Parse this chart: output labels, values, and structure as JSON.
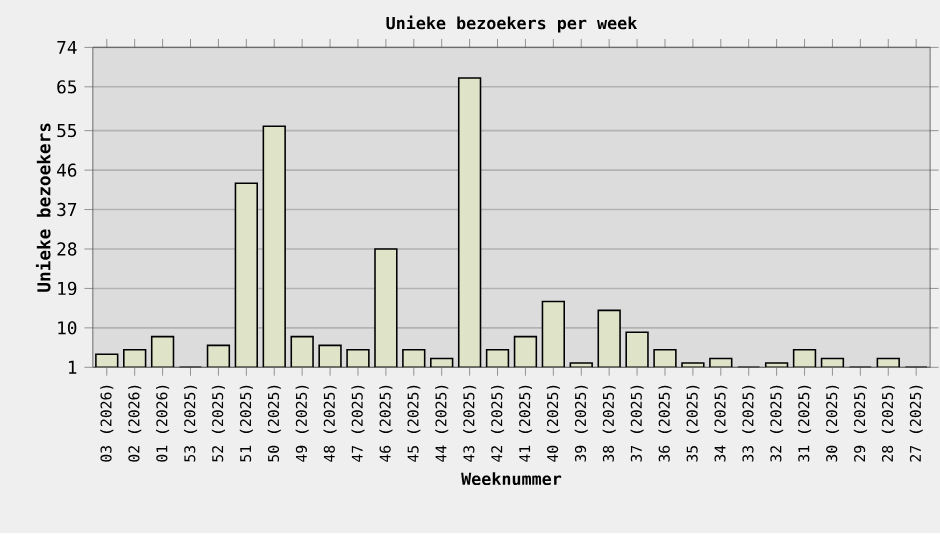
{
  "chart_data": {
    "type": "bar",
    "title": "Unieke bezoekers per week",
    "xlabel": "Weeknummer",
    "ylabel": "Unieke bezoekers",
    "categories": [
      "03 (2026)",
      "02 (2026)",
      "01 (2026)",
      "53 (2025)",
      "52 (2025)",
      "51 (2025)",
      "50 (2025)",
      "49 (2025)",
      "48 (2025)",
      "47 (2025)",
      "46 (2025)",
      "45 (2025)",
      "44 (2025)",
      "43 (2025)",
      "42 (2025)",
      "41 (2025)",
      "40 (2025)",
      "39 (2025)",
      "38 (2025)",
      "37 (2025)",
      "36 (2025)",
      "35 (2025)",
      "34 (2025)",
      "33 (2025)",
      "32 (2025)",
      "31 (2025)",
      "30 (2025)",
      "29 (2025)",
      "28 (2025)",
      "27 (2025)"
    ],
    "values": [
      4,
      5,
      8,
      1,
      6,
      43,
      56,
      8,
      6,
      5,
      28,
      5,
      3,
      67,
      5,
      8,
      16,
      2,
      14,
      9,
      5,
      2,
      3,
      1,
      2,
      5,
      3,
      1,
      3,
      1
    ],
    "color": "#dfe3c8",
    "ylim": [
      1,
      74
    ],
    "yticks": [
      1,
      10,
      19,
      28,
      37,
      46,
      55,
      65,
      74
    ],
    "grid": "y"
  }
}
